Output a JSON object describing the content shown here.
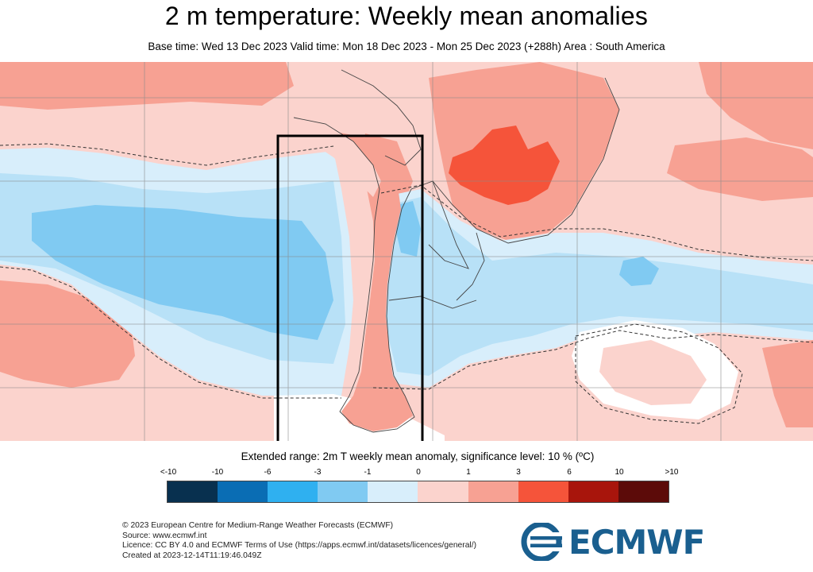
{
  "header": {
    "title": "2 m temperature: Weekly mean anomalies",
    "subtitle": "Base time: Wed 13 Dec 2023 Valid time: Mon 18 Dec 2023 - Mon 25 Dec 2023 (+288h) Area : South America"
  },
  "map": {
    "region": "South America",
    "highlight_box": "southern cone box"
  },
  "legend": {
    "title": "Extended range: 2m T weekly mean anomaly, significance level: 10 % (ºC)",
    "labels": [
      "<-10",
      "-10",
      "-6",
      "-3",
      "-1",
      "0",
      "1",
      "3",
      "6",
      "10",
      ">10"
    ],
    "colors": [
      "#08304f",
      "#0a6db4",
      "#2fb0f0",
      "#80caf2",
      "#b8e1f7",
      "#d8eefb",
      "#fbd3cd",
      "#f7a193",
      "#f5543a",
      "#a8150c",
      "#5c0b09"
    ]
  },
  "credits": {
    "line1": "© 2023 European Centre for Medium-Range Weather Forecasts (ECMWF)",
    "line2": "Source: www.ecmwf.int",
    "line3": "Licence: CC BY 4.0 and ECMWF Terms of Use (https://apps.ecmwf.int/datasets/licences/general/)",
    "line4": "Created at 2023-12-14T11:19:46.049Z"
  },
  "logo": {
    "text": "ECMWF",
    "color": "#1a5f8f"
  }
}
